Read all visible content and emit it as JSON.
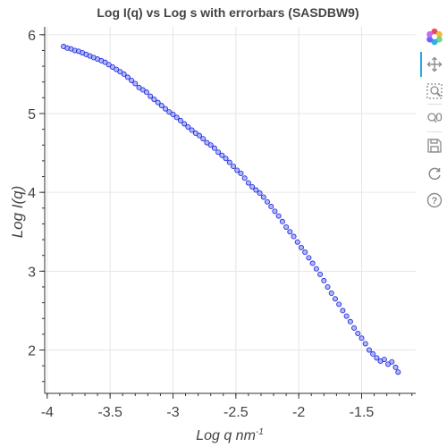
{
  "chart_data": {
    "type": "scatter",
    "title": "Log I(q) vs Log s with errorbars (SASDBW9)",
    "xlabel": "Log q nm",
    "xlabel_sup": "-1",
    "ylabel": "Log I(q)",
    "xlim": [
      -4.02,
      -1.07
    ],
    "ylim": [
      1.45,
      6.1
    ],
    "x_ticks": [
      -4,
      -3.5,
      -3,
      -2.5,
      -2,
      -1.5
    ],
    "x_tick_labels": [
      "-4",
      "-3.5",
      "-3",
      "-2.5",
      "-2",
      "-1.5"
    ],
    "y_ticks": [
      2,
      3,
      4,
      5,
      6
    ],
    "y_tick_labels": [
      "2",
      "3",
      "4",
      "5",
      "6"
    ],
    "grid": true,
    "marker": "circle",
    "marker_fill": "#8fa3ff",
    "marker_stroke": "#1f1fd6",
    "series": [
      {
        "x": [
          -3.87,
          -3.84,
          -3.81,
          -3.78,
          -3.75,
          -3.72,
          -3.69,
          -3.66,
          -3.63,
          -3.6,
          -3.57,
          -3.54,
          -3.51,
          -3.48,
          -3.45,
          -3.42,
          -3.39,
          -3.36,
          -3.33,
          -3.3,
          -3.27,
          -3.24,
          -3.21,
          -3.18,
          -3.15,
          -3.12,
          -3.09,
          -3.06,
          -3.03,
          -3.0,
          -2.97,
          -2.94,
          -2.91,
          -2.88,
          -2.85,
          -2.82,
          -2.79,
          -2.76,
          -2.73,
          -2.7,
          -2.67,
          -2.64,
          -2.61,
          -2.58,
          -2.55,
          -2.52,
          -2.49,
          -2.46,
          -2.43,
          -2.4,
          -2.37,
          -2.34,
          -2.31,
          -2.28,
          -2.25,
          -2.22,
          -2.19,
          -2.16,
          -2.13,
          -2.1,
          -2.07,
          -2.04,
          -2.01,
          -1.98,
          -1.95,
          -1.92,
          -1.89,
          -1.86,
          -1.83,
          -1.8,
          -1.77,
          -1.74,
          -1.71,
          -1.68,
          -1.65,
          -1.62,
          -1.59,
          -1.56,
          -1.53,
          -1.5,
          -1.47,
          -1.44,
          -1.41,
          -1.38,
          -1.35,
          -1.32,
          -1.29,
          -1.26,
          -1.23,
          -1.21
        ],
        "y": [
          5.85,
          5.83,
          5.82,
          5.8,
          5.79,
          5.77,
          5.75,
          5.73,
          5.71,
          5.69,
          5.67,
          5.65,
          5.62,
          5.59,
          5.56,
          5.53,
          5.5,
          5.46,
          5.42,
          5.38,
          5.33,
          5.3,
          5.27,
          5.22,
          5.18,
          5.14,
          5.1,
          5.06,
          5.02,
          4.99,
          4.95,
          4.91,
          4.87,
          4.83,
          4.79,
          4.75,
          4.72,
          4.68,
          4.63,
          4.6,
          4.56,
          4.51,
          4.47,
          4.43,
          4.38,
          4.33,
          4.28,
          4.24,
          4.18,
          4.12,
          4.07,
          4.03,
          3.99,
          3.94,
          3.88,
          3.82,
          3.76,
          3.7,
          3.63,
          3.56,
          3.5,
          3.44,
          3.37,
          3.3,
          3.24,
          3.17,
          3.1,
          3.03,
          2.96,
          2.88,
          2.8,
          2.72,
          2.65,
          2.58,
          2.5,
          2.43,
          2.36,
          2.28,
          2.21,
          2.15,
          2.08,
          2.0,
          1.95,
          1.9,
          1.86,
          1.88,
          1.82,
          1.85,
          1.78,
          1.72
        ]
      }
    ]
  },
  "toolbar": {
    "icons": [
      "bokeh-logo-icon",
      "pan-icon",
      "box-zoom-icon",
      "wheel-zoom-icon",
      "save-icon",
      "reset-icon",
      "help-icon"
    ],
    "active_color": "#26aae1"
  }
}
